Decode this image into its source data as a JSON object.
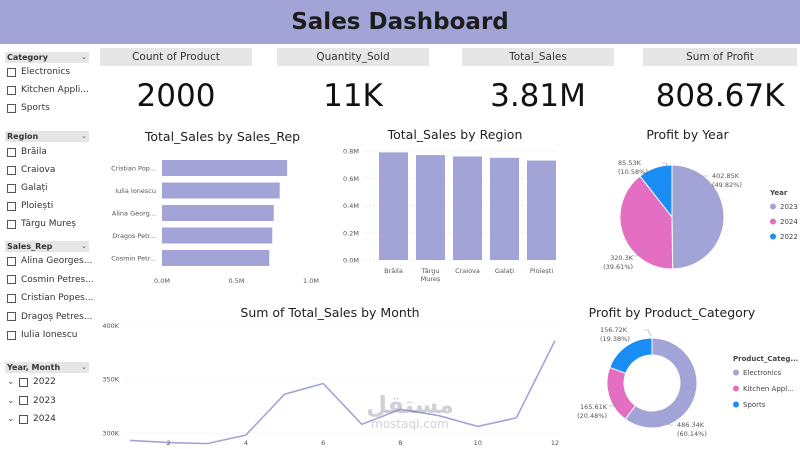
{
  "header": {
    "title": "Sales Dashboard"
  },
  "colors": {
    "accent": "#a2a4d7",
    "bar": "#a2a4d7",
    "pink": "#e36ec2",
    "blue": "#1a8df5",
    "line": "#a2a4d7"
  },
  "slicers": {
    "category": {
      "title": "Category",
      "items": [
        "Electronics",
        "Kitchen Appli...",
        "Sports"
      ]
    },
    "region": {
      "title": "Region",
      "items": [
        "Brăila",
        "Craiova",
        "Galați",
        "Ploiești",
        "Târgu Mureș"
      ]
    },
    "sales_rep": {
      "title": "Sales_Rep",
      "items": [
        "Alina Georges...",
        "Cosmin Petres...",
        "Cristian Popes...",
        "Dragoș Petres...",
        "Iulia Ionescu"
      ]
    },
    "year_month": {
      "title": "Year, Month",
      "items": [
        "2022",
        "2023",
        "2024"
      ]
    }
  },
  "kpis": [
    {
      "label": "Count of Product",
      "value": "2000"
    },
    {
      "label": "Quantity_Sold",
      "value": "11K"
    },
    {
      "label": "Total_Sales",
      "value": "3.81M"
    },
    {
      "label": "Sum of Profit",
      "value": "808.67K"
    }
  ],
  "chart_data": [
    {
      "type": "bar",
      "orientation": "horizontal",
      "title": "Total_Sales by Sales_Rep",
      "categories": [
        "Cristian Pop...",
        "Iulia Ionescu",
        "Alina Georg...",
        "Dragos Petr...",
        "Cosmin Petr..."
      ],
      "values": [
        0.84,
        0.79,
        0.75,
        0.74,
        0.72
      ],
      "x_ticks": [
        "0.0M",
        "0.5M",
        "1.0M"
      ],
      "xlim": [
        0,
        1.0
      ]
    },
    {
      "type": "bar",
      "title": "Total_Sales by Region",
      "categories": [
        "Brăila",
        "Târgu Mureș",
        "Craiova",
        "Galați",
        "Ploiești"
      ],
      "values": [
        0.79,
        0.77,
        0.76,
        0.75,
        0.73
      ],
      "y_ticks": [
        "0.0M",
        "0.2M",
        "0.4M",
        "0.6M",
        "0.8M"
      ],
      "ylim": [
        0,
        0.8
      ]
    },
    {
      "type": "pie",
      "title": "Profit by Year",
      "legend_title": "Year",
      "slices": [
        {
          "name": "2023",
          "value": 402.85,
          "label": "402.85K",
          "pct": "(49.82%)",
          "color": "#a2a4d7"
        },
        {
          "name": "2024",
          "value": 320.3,
          "label": "320.3K",
          "pct": "(39.61%)",
          "color": "#e36ec2"
        },
        {
          "name": "2022",
          "value": 85.53,
          "label": "85.53K",
          "pct": "(10.58%)",
          "color": "#1a8df5"
        }
      ]
    },
    {
      "type": "line",
      "title": "Sum of Total_Sales by Month",
      "x": [
        1,
        2,
        3,
        4,
        5,
        6,
        7,
        8,
        9,
        10,
        11,
        12
      ],
      "values": [
        293,
        291,
        290,
        298,
        336,
        346,
        308,
        322,
        316,
        306,
        314,
        386
      ],
      "x_ticks": [
        "2",
        "4",
        "6",
        "8",
        "10",
        "12"
      ],
      "y_ticks": [
        "300K",
        "350K",
        "400K"
      ],
      "ylim": [
        285,
        407
      ]
    },
    {
      "type": "pie",
      "donut": true,
      "title": "Profit by Product_Category",
      "legend_title": "Product_Categ...",
      "slices": [
        {
          "name": "Electronics",
          "value": 486.34,
          "label": "486.34K",
          "pct": "(60.14%)",
          "color": "#a2a4d7"
        },
        {
          "name": "Kitchen Appl...",
          "value": 165.61,
          "label": "165.61K",
          "pct": "(20.48%)",
          "color": "#e36ec2"
        },
        {
          "name": "Sports",
          "value": 156.72,
          "label": "156.72K",
          "pct": "(19.38%)",
          "color": "#1a8df5"
        }
      ]
    }
  ],
  "watermark": {
    "arabic": "مستقل",
    "latin": "mostaql.com"
  }
}
